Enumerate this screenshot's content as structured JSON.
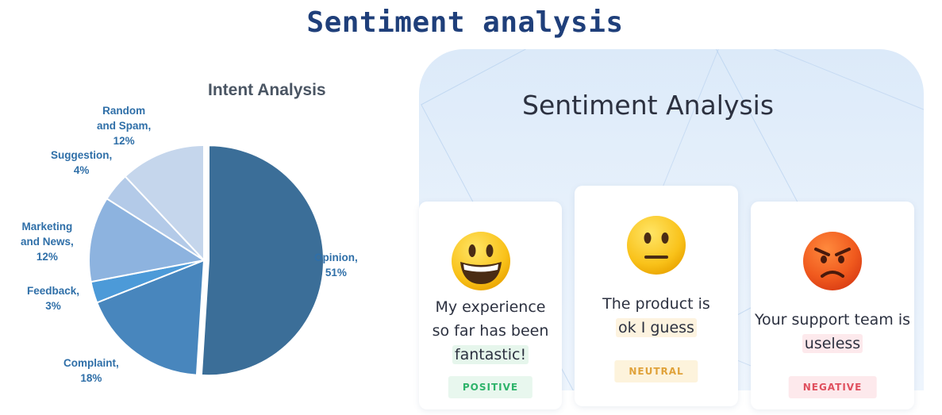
{
  "header": {
    "title": "Sentiment analysis"
  },
  "chart_data": {
    "type": "pie",
    "title": "Intent Analysis",
    "labels": [
      "Opinion",
      "Complaint",
      "Feedback",
      "Marketing and News",
      "Suggestion",
      "Random and Spam"
    ],
    "values": [
      51,
      18,
      3,
      12,
      4,
      12
    ],
    "unit": "%",
    "colors": [
      "#3b6e98",
      "#4886bd",
      "#4c9ad8",
      "#8db3df",
      "#b3cae8",
      "#c5d6ec"
    ],
    "data_labels": [
      [
        "Opinion,",
        "51%"
      ],
      [
        "Complaint,",
        "18%"
      ],
      [
        "Feedback,",
        "3%"
      ],
      [
        "Marketing",
        "and News,",
        "12%"
      ],
      [
        "Suggestion,",
        "4%"
      ],
      [
        "Random",
        "and Spam,",
        "12%"
      ]
    ]
  },
  "sentiment": {
    "title": "Sentiment Analysis",
    "cards": [
      {
        "emoji": "grinning-face-icon",
        "text_lines": [
          "My experience",
          "so far has been"
        ],
        "highlight": "fantastic!",
        "label": "POSITIVE",
        "color": "#27ae60",
        "bg": "#e8f7ee"
      },
      {
        "emoji": "neutral-face-icon",
        "text_lines": [
          "The product is"
        ],
        "highlight": "ok I guess",
        "label": "NEUTRAL",
        "color": "#e6a23c",
        "bg": "#fdf5e2"
      },
      {
        "emoji": "angry-face-icon",
        "text_lines": [
          "Your support team is"
        ],
        "highlight": "useless",
        "label": "NEGATIVE",
        "color": "#e05260",
        "bg": "#fdecee"
      }
    ]
  }
}
